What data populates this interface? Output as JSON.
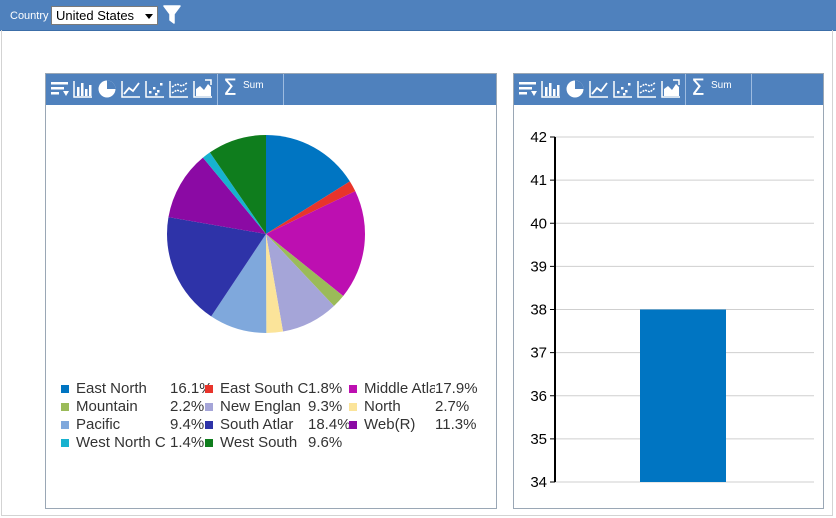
{
  "filter_bar": {
    "country_label": "Country",
    "country_value": "United States"
  },
  "toolbar": {
    "sum_label": "Sum"
  },
  "colors": {
    "bar_blue": "#4f81bd",
    "bar_fill": "#0075c2"
  },
  "chart_data": [
    {
      "type": "pie",
      "title": "",
      "slices": [
        {
          "label": "East North Central",
          "legend_text": "East North",
          "percent_text": "16.1%",
          "value": 16.1,
          "color": "#0075c2"
        },
        {
          "label": "East South Central",
          "legend_text": "East South C",
          "percent_text": "1.8%",
          "value": 1.8,
          "color": "#e8342b"
        },
        {
          "label": "Middle Atlantic",
          "legend_text": "Middle Atla",
          "percent_text": "17.9%",
          "value": 17.9,
          "color": "#bd0fb1"
        },
        {
          "label": "Mountain",
          "legend_text": "Mountain",
          "percent_text": "2.2%",
          "value": 2.2,
          "color": "#9bbb59"
        },
        {
          "label": "New England",
          "legend_text": "New Englan",
          "percent_text": "9.3%",
          "value": 9.3,
          "color": "#a5a5d8"
        },
        {
          "label": "North",
          "legend_text": "North",
          "percent_text": "2.7%",
          "value": 2.7,
          "color": "#fbe49a"
        },
        {
          "label": "Pacific",
          "legend_text": "Pacific",
          "percent_text": "9.4%",
          "value": 9.4,
          "color": "#7fa8dc"
        },
        {
          "label": "South Atlantic",
          "legend_text": "South Atlar",
          "percent_text": "18.4%",
          "value": 18.4,
          "color": "#2e33a8"
        },
        {
          "label": "Web(R)",
          "legend_text": "Web(R)",
          "percent_text": "11.3%",
          "value": 11.3,
          "color": "#8b0aa4"
        },
        {
          "label": "West North Central",
          "legend_text": "West North C",
          "percent_text": "1.4%",
          "value": 1.4,
          "color": "#17b2cf"
        },
        {
          "label": "West South Central",
          "legend_text": "West South",
          "percent_text": "9.6%",
          "value": 9.6,
          "color": "#0f7d1d"
        }
      ]
    },
    {
      "type": "bar",
      "title": "",
      "categories": [
        ""
      ],
      "values": [
        38
      ],
      "ylim": [
        34,
        42
      ],
      "yticks": [
        "34",
        "35",
        "36",
        "37",
        "38",
        "39",
        "40",
        "41",
        "42"
      ],
      "grid": true
    }
  ]
}
